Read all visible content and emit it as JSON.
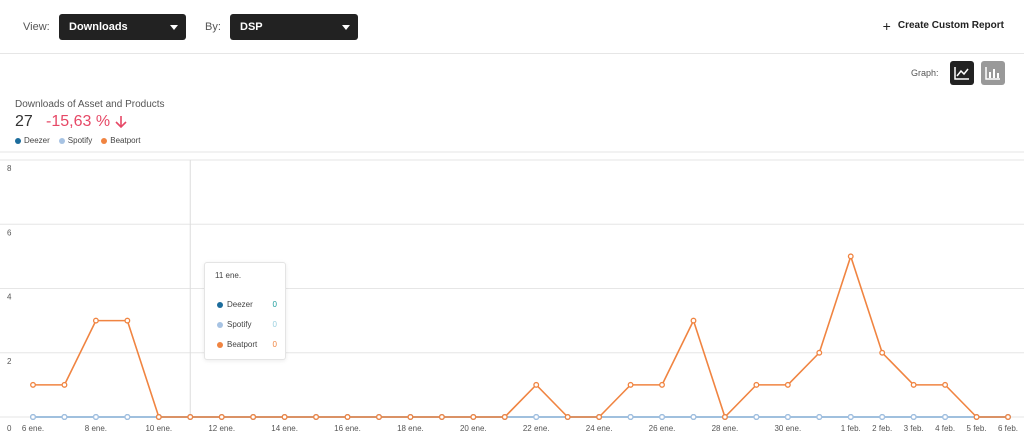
{
  "toolbar": {
    "view_label": "View:",
    "view_value": "Downloads",
    "by_label": "By:",
    "by_value": "DSP",
    "create_label": "Create Custom Report"
  },
  "graph": {
    "label": "Graph:"
  },
  "summary": {
    "title": "Downloads of Asset and Products",
    "total": "27",
    "change": "-15,63 %"
  },
  "colors": {
    "deezer": "#1c6c9c",
    "spotify": "#a7c3e3",
    "beatport": "#f08441",
    "negative": "#e64866"
  },
  "legend": [
    {
      "label": "Deezer",
      "color": "#1c6c9c"
    },
    {
      "label": "Spotify",
      "color": "#a7c3e3"
    },
    {
      "label": "Beatport",
      "color": "#f08441"
    }
  ],
  "tooltip": {
    "date": "11 ene.",
    "rows": [
      {
        "label": "Deezer",
        "value": "0",
        "color": "#1c6c9c"
      },
      {
        "label": "Spotify",
        "value": "0",
        "color": "#a7c3e3"
      },
      {
        "label": "Beatport",
        "value": "0",
        "color": "#f08441"
      }
    ]
  },
  "chart_data": {
    "type": "line",
    "x": [
      "6 ene.",
      "7 ene.",
      "8 ene.",
      "9 ene.",
      "10 ene.",
      "11 ene.",
      "12 ene.",
      "13 ene.",
      "14 ene.",
      "15 ene.",
      "16 ene.",
      "17 ene.",
      "18 ene.",
      "19 ene.",
      "20 ene.",
      "21 ene.",
      "22 ene.",
      "23 ene.",
      "24 ene.",
      "25 ene.",
      "26 ene.",
      "27 ene.",
      "28 ene.",
      "29 ene.",
      "30 ene.",
      "31 ene.",
      "1 feb.",
      "2 feb.",
      "3 feb.",
      "4 feb.",
      "5 feb.",
      "6 feb."
    ],
    "x_tick_labels": [
      "6 ene.",
      "8 ene.",
      "10 ene.",
      "12 ene.",
      "14 ene.",
      "16 ene.",
      "18 ene.",
      "20 ene.",
      "22 ene.",
      "24 ene.",
      "26 ene.",
      "28 ene.",
      "30 ene.",
      "1 feb.",
      "2 feb.",
      "3 feb.",
      "4 feb.",
      "5 feb.",
      "6 feb."
    ],
    "y_ticks": [
      "0",
      "2",
      "4",
      "6",
      "8"
    ],
    "ylim": [
      0,
      8
    ],
    "grid": true,
    "series": [
      {
        "name": "Deezer",
        "color": "#1c6c9c",
        "values": [
          0,
          0,
          0,
          0,
          0,
          0,
          0,
          0,
          0,
          0,
          0,
          0,
          0,
          0,
          0,
          0,
          0,
          0,
          0,
          0,
          0,
          0,
          0,
          0,
          0,
          0,
          0,
          0,
          0,
          0,
          0,
          0
        ]
      },
      {
        "name": "Spotify",
        "color": "#a7c3e3",
        "values": [
          0,
          0,
          0,
          0,
          0,
          0,
          0,
          0,
          0,
          0,
          0,
          0,
          0,
          0,
          0,
          0,
          0,
          0,
          0,
          0,
          0,
          0,
          0,
          0,
          0,
          0,
          0,
          0,
          0,
          0,
          0,
          0
        ]
      },
      {
        "name": "Beatport",
        "color": "#f08441",
        "values": [
          1,
          1,
          3,
          3,
          0,
          0,
          0,
          0,
          0,
          0,
          0,
          0,
          0,
          0,
          0,
          0,
          1,
          0,
          0,
          1,
          1,
          3,
          0,
          1,
          1,
          2,
          5,
          2,
          1,
          1,
          0,
          0
        ]
      }
    ],
    "hover_index": 5
  }
}
